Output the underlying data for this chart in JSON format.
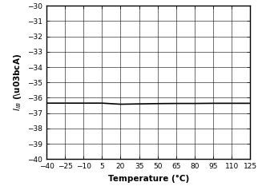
{
  "title": "",
  "xlabel": "Temperature (°C)",
  "xlim": [
    -40,
    125
  ],
  "ylim": [
    -40,
    -30
  ],
  "xticks": [
    -40,
    -25,
    -10,
    5,
    20,
    35,
    50,
    65,
    80,
    95,
    110,
    125
  ],
  "yticks": [
    -40,
    -39,
    -38,
    -37,
    -36,
    -35,
    -34,
    -33,
    -32,
    -31,
    -30
  ],
  "line_x": [
    -40,
    -25,
    -10,
    5,
    20,
    35,
    50,
    65,
    80,
    95,
    110,
    125
  ],
  "line_y": [
    -36.35,
    -36.35,
    -36.35,
    -36.35,
    -36.42,
    -36.4,
    -36.38,
    -36.37,
    -36.37,
    -36.36,
    -36.36,
    -36.36
  ],
  "line_color": "#000000",
  "line_width": 1.2,
  "grid_color": "#000000",
  "grid_linewidth": 0.4,
  "background_color": "#ffffff",
  "tick_fontsize": 6.5,
  "label_fontsize": 7.5
}
